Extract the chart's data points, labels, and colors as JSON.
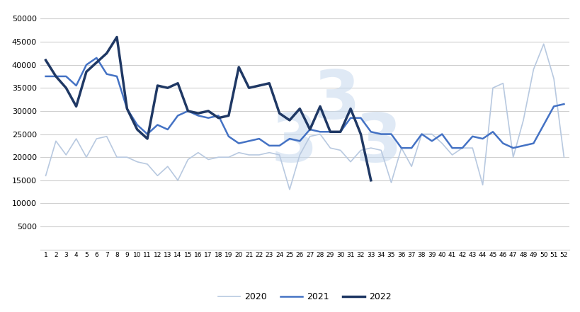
{
  "weeks": [
    1,
    2,
    3,
    4,
    5,
    6,
    7,
    8,
    9,
    10,
    11,
    12,
    13,
    14,
    15,
    16,
    17,
    18,
    19,
    20,
    21,
    22,
    23,
    24,
    25,
    26,
    27,
    28,
    29,
    30,
    31,
    32,
    33,
    34,
    35,
    36,
    37,
    38,
    39,
    40,
    41,
    42,
    43,
    44,
    45,
    46,
    47,
    48,
    49,
    50,
    51,
    52
  ],
  "y2020": [
    16000,
    23500,
    20500,
    24000,
    20000,
    24000,
    24500,
    20000,
    20000,
    19000,
    18500,
    16000,
    18000,
    15000,
    19500,
    21000,
    19500,
    20000,
    20000,
    21000,
    20500,
    20500,
    21000,
    20500,
    13000,
    20500,
    24500,
    25000,
    22000,
    21500,
    19000,
    21500,
    22000,
    21500,
    14500,
    22000,
    18000,
    25000,
    25000,
    23000,
    20500,
    22000,
    22000,
    14000,
    35000,
    36000,
    20000,
    28000,
    39000,
    44500,
    37000,
    20000
  ],
  "y2021": [
    37500,
    37500,
    37500,
    35500,
    40000,
    41500,
    38000,
    37500,
    30500,
    27000,
    25000,
    27000,
    26000,
    29000,
    30000,
    29000,
    28500,
    29000,
    24500,
    23000,
    23500,
    24000,
    22500,
    22500,
    24000,
    23500,
    26000,
    25500,
    25500,
    25500,
    28500,
    28500,
    25500,
    25000,
    25000,
    22000,
    22000,
    25000,
    23500,
    25000,
    22000,
    22000,
    24500,
    24000,
    25500,
    23000,
    22000,
    22500,
    23000,
    27000,
    31000,
    31500
  ],
  "y2022": [
    41000,
    37500,
    35000,
    31000,
    38500,
    40500,
    42500,
    46000,
    30500,
    26000,
    24000,
    35500,
    35000,
    36000,
    30000,
    29500,
    30000,
    28500,
    29000,
    39500,
    35000,
    35500,
    36000,
    29500,
    28000,
    30500,
    26000,
    31000,
    25500,
    25500,
    30500,
    25000,
    15000,
    null,
    null,
    null,
    null,
    null,
    null,
    null,
    null,
    null,
    null,
    null,
    null,
    null,
    null,
    null,
    null,
    null,
    null,
    null
  ],
  "color2020": "#b8c9e0",
  "color2021": "#4472c4",
  "color2022": "#1f3864",
  "lw2020": 1.2,
  "lw2021": 1.8,
  "lw2022": 2.5,
  "yticks": [
    5000,
    10000,
    15000,
    20000,
    25000,
    30000,
    35000,
    40000,
    45000,
    50000
  ],
  "ylim": [
    0,
    52000
  ],
  "bg_color": "#ffffff",
  "grid_color": "#d0d0d0"
}
